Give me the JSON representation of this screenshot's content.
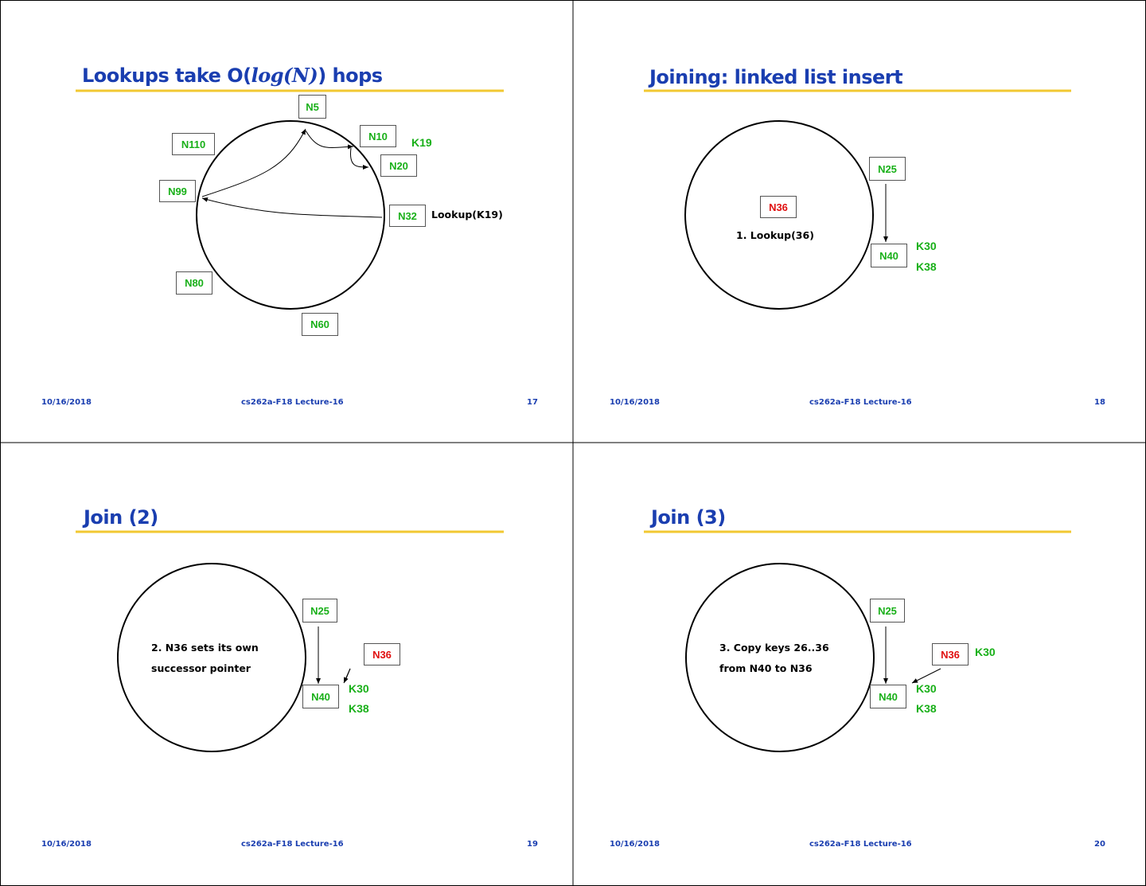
{
  "footer": {
    "date": "10/16/2018",
    "course": "cs262a-F18 Lecture-16"
  },
  "slides": [
    {
      "number": "17",
      "title_pre": "Lookups take O(",
      "title_italic": "log(N)",
      "title_post": ") hops",
      "nodes": [
        "N5",
        "N110",
        "N10",
        "N20",
        "N99",
        "N32",
        "N80",
        "N60"
      ],
      "key": "K19",
      "annotation": "Lookup(K19)"
    },
    {
      "number": "18",
      "title": "Joining: linked list insert",
      "nodes": [
        "N25",
        "N40",
        "N36"
      ],
      "keys": [
        "K30",
        "K38"
      ],
      "step": "1. Lookup(36)"
    },
    {
      "number": "19",
      "title": "Join (2)",
      "nodes": [
        "N25",
        "N40",
        "N36"
      ],
      "keys": [
        "K30",
        "K38"
      ],
      "step_line1": "2. N36 sets its own",
      "step_line2": "successor pointer"
    },
    {
      "number": "20",
      "title": "Join (3)",
      "nodes": [
        "N25",
        "N40",
        "N36"
      ],
      "keys": [
        "K30",
        "K38"
      ],
      "copied_key": "K30",
      "step_line1": "3. Copy keys 26..36",
      "step_line2": "from N40 to N36"
    }
  ],
  "colors": {
    "title": "#1a3eb0",
    "underline": "#f2c832",
    "node_green": "#19b019",
    "node_red": "#e01010"
  }
}
